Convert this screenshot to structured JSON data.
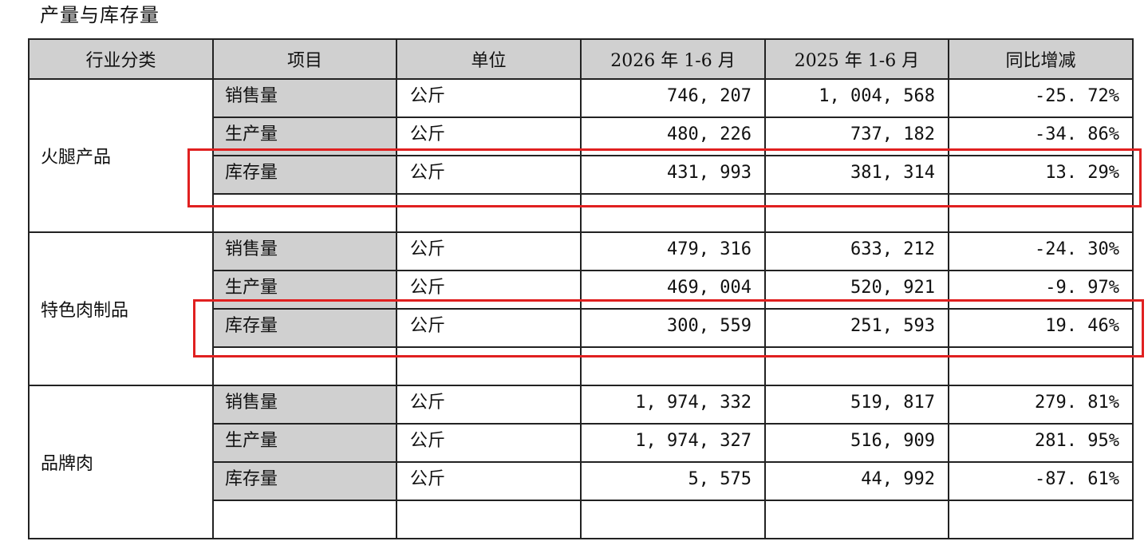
{
  "title": "产量与库存量",
  "table": {
    "headers": [
      "行业分类",
      "项目",
      "单位",
      "2026 年 1-6 月",
      "2025 年 1-6 月",
      "同比增减"
    ],
    "groups": [
      {
        "category": "火腿产品",
        "rows": [
          {
            "item": "销售量",
            "unit": "公斤",
            "y2026": "746, 207",
            "y2025": "1, 004, 568",
            "yoy": "-25. 72%"
          },
          {
            "item": "生产量",
            "unit": "公斤",
            "y2026": "480, 226",
            "y2025": "737, 182",
            "yoy": "-34. 86%"
          },
          {
            "item": "库存量",
            "unit": "公斤",
            "y2026": "431, 993",
            "y2025": "381, 314",
            "yoy": "13. 29%"
          }
        ]
      },
      {
        "category": "特色肉制品",
        "rows": [
          {
            "item": "销售量",
            "unit": "公斤",
            "y2026": "479, 316",
            "y2025": "633, 212",
            "yoy": "-24. 30%"
          },
          {
            "item": "生产量",
            "unit": "公斤",
            "y2026": "469, 004",
            "y2025": "520, 921",
            "yoy": "-9. 97%"
          },
          {
            "item": "库存量",
            "unit": "公斤",
            "y2026": "300, 559",
            "y2025": "251, 593",
            "yoy": "19. 46%"
          }
        ]
      },
      {
        "category": "品牌肉",
        "rows": [
          {
            "item": "销售量",
            "unit": "公斤",
            "y2026": "1, 974, 332",
            "y2025": "519, 817",
            "yoy": "279. 81%"
          },
          {
            "item": "生产量",
            "unit": "公斤",
            "y2026": "1, 974, 327",
            "y2025": "516, 909",
            "yoy": "281. 95%"
          },
          {
            "item": "库存量",
            "unit": "公斤",
            "y2026": "5, 575",
            "y2025": "44, 992",
            "yoy": "-87. 61%"
          }
        ]
      }
    ]
  },
  "highlight_color": "#e02020"
}
